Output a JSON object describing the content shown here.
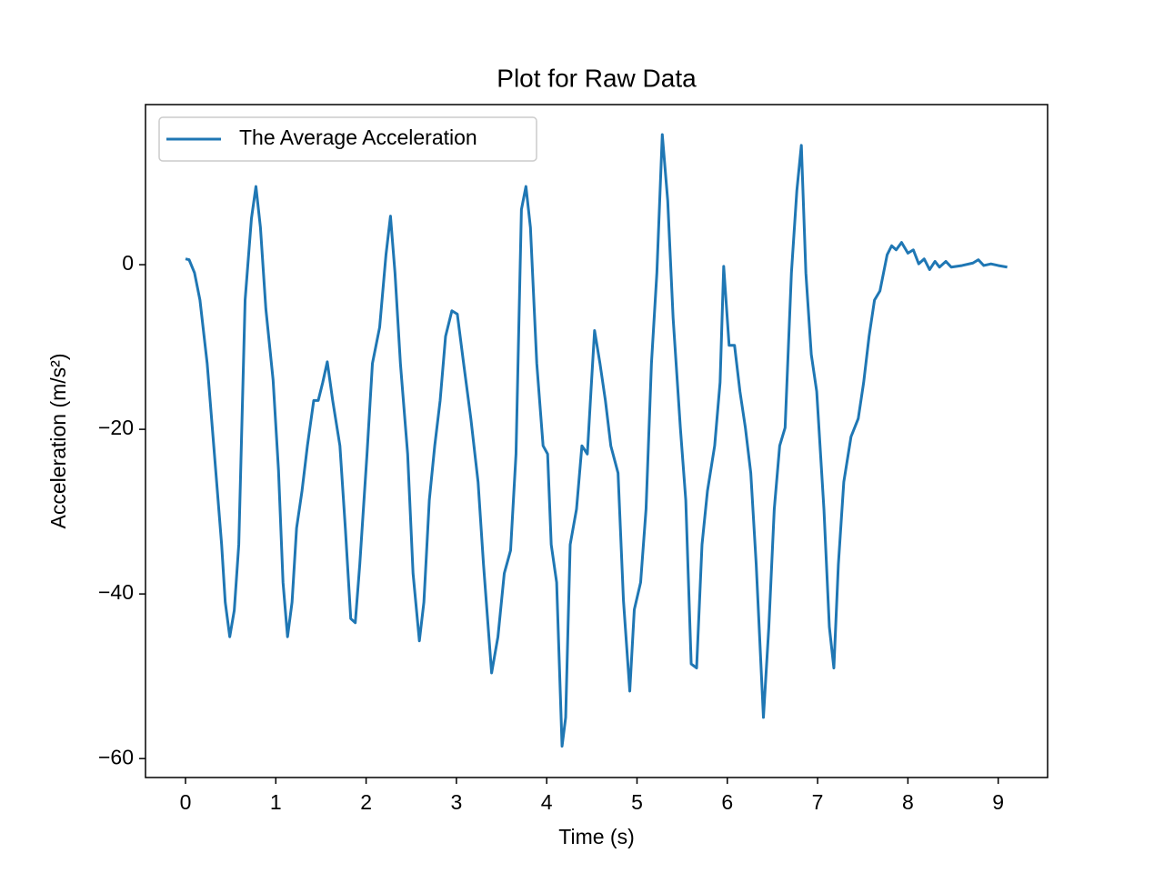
{
  "chart_data": {
    "type": "line",
    "title": "Plot for Raw Data",
    "x_label": "Time (s)",
    "y_label": "Acceleration (m/s²)",
    "x": [
      0,
      0.04,
      0.1,
      0.16,
      0.24,
      0.32,
      0.4,
      0.44,
      0.49,
      0.54,
      0.59,
      0.66,
      0.73,
      0.78,
      0.83,
      0.89,
      0.97,
      1.03,
      1.08,
      1.13,
      1.18,
      1.23,
      1.29,
      1.35,
      1.42,
      1.47,
      1.52,
      1.57,
      1.63,
      1.71,
      1.77,
      1.83,
      1.88,
      1.93,
      2.01,
      2.07,
      2.15,
      2.22,
      2.27,
      2.32,
      2.38,
      2.46,
      2.52,
      2.59,
      2.64,
      2.7,
      2.76,
      2.82,
      2.88,
      2.95,
      3.01,
      3.08,
      3.16,
      3.24,
      3.3,
      3.39,
      3.46,
      3.53,
      3.6,
      3.66,
      3.72,
      3.77,
      3.82,
      3.89,
      3.96,
      4.01,
      4.05,
      4.11,
      4.17,
      4.21,
      4.26,
      4.33,
      4.39,
      4.45,
      4.49,
      4.53,
      4.59,
      4.65,
      4.71,
      4.79,
      4.85,
      4.92,
      4.97,
      5.04,
      5.1,
      5.16,
      5.22,
      5.28,
      5.34,
      5.4,
      5.48,
      5.54,
      5.6,
      5.66,
      5.72,
      5.78,
      5.86,
      5.92,
      5.96,
      6.02,
      6.08,
      6.14,
      6.2,
      6.26,
      6.32,
      6.4,
      6.46,
      6.52,
      6.58,
      6.64,
      6.71,
      6.77,
      6.82,
      6.87,
      6.93,
      6.99,
      7.07,
      7.13,
      7.18,
      7.23,
      7.29,
      7.37,
      7.45,
      7.51,
      7.57,
      7.63,
      7.69,
      7.77,
      7.82,
      7.87,
      7.93,
      8.0,
      8.06,
      8.12,
      8.18,
      8.24,
      8.3,
      8.35,
      8.42,
      8.48,
      8.6,
      8.72,
      8.78,
      8.84,
      8.92,
      9.0,
      9.1
    ],
    "series": [
      {
        "name": "The Average Acceleration",
        "color": "#1f77b4",
        "values": [
          0.7,
          0.6,
          -1,
          -4.3,
          -12,
          -23,
          -34,
          -41,
          -45.2,
          -42,
          -34,
          -4.3,
          5.6,
          9.5,
          4.5,
          -5.4,
          -14,
          -25,
          -38.6,
          -45.2,
          -41,
          -32,
          -27.5,
          -22,
          -16.5,
          -16.5,
          -14.3,
          -11.8,
          -16.5,
          -22,
          -32,
          -43,
          -43.5,
          -36.4,
          -23,
          -12,
          -7.6,
          1.2,
          5.9,
          -1,
          -12,
          -23,
          -37.5,
          -45.7,
          -41,
          -28.6,
          -22,
          -16.5,
          -8.7,
          -5.6,
          -6,
          -12,
          -18.7,
          -26.4,
          -36.4,
          -49.6,
          -45.2,
          -37.5,
          -34.7,
          -23,
          6.7,
          9.5,
          4.5,
          -12,
          -22,
          -23,
          -34,
          -38.6,
          -58.5,
          -55,
          -34,
          -29.7,
          -22,
          -23,
          -15.4,
          -8,
          -12,
          -16.5,
          -22,
          -25.3,
          -40.8,
          -51.8,
          -41.9,
          -38.6,
          -29.7,
          -12,
          -1,
          15.8,
          7.8,
          -6.5,
          -19.8,
          -28.6,
          -48.5,
          -49,
          -34,
          -27.5,
          -22,
          -14.3,
          -0.2,
          -9.8,
          -9.8,
          -15.4,
          -19.8,
          -25.3,
          -36.4,
          -55,
          -44,
          -29.7,
          -22,
          -19.8,
          -1,
          9,
          14.5,
          -1,
          -10.9,
          -15.4,
          -29.7,
          -44,
          -49,
          -36.4,
          -26.4,
          -20.9,
          -18.7,
          -14.3,
          -8.7,
          -4.3,
          -3.2,
          1.2,
          2.3,
          1.8,
          2.7,
          1.4,
          1.8,
          0.1,
          0.7,
          -0.6,
          0.4,
          -0.3,
          0.4,
          -0.3,
          -0.1,
          0.2,
          0.6,
          -0.1,
          0.1,
          -0.1,
          -0.3
        ]
      }
    ],
    "xlim": [
      -0.443,
      9.547
    ],
    "ylim": [
      -62.3,
      19.45
    ],
    "xticks": [
      0,
      1,
      2,
      3,
      4,
      5,
      6,
      7,
      8,
      9
    ],
    "yticks": [
      {
        "value": -60,
        "label": "−60"
      },
      {
        "value": -40,
        "label": "−40"
      },
      {
        "value": -20,
        "label": "−20"
      },
      0
    ],
    "legend": "upper left",
    "grid": false
  }
}
